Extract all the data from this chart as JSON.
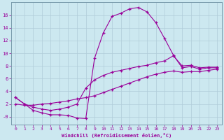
{
  "xlabel": "Windchill (Refroidissement éolien,°C)",
  "background_color": "#cce8f0",
  "line_color": "#990099",
  "xlim": [
    -0.5,
    23.5
  ],
  "ylim": [
    -1.2,
    18
  ],
  "yticks": [
    0,
    2,
    4,
    6,
    8,
    10,
    12,
    14,
    16
  ],
  "ytick_labels": [
    "-0",
    "2",
    "4",
    "6",
    "8",
    "10",
    "12",
    "14",
    "16"
  ],
  "xticks": [
    0,
    1,
    2,
    3,
    4,
    5,
    6,
    7,
    8,
    9,
    10,
    11,
    12,
    13,
    14,
    15,
    16,
    17,
    18,
    19,
    20,
    21,
    22,
    23
  ],
  "curve1_x": [
    0,
    1,
    2,
    3,
    4,
    5,
    6,
    7,
    8,
    9,
    10,
    11,
    12,
    13,
    14,
    15,
    16,
    17,
    18,
    19,
    20,
    21,
    22,
    23
  ],
  "curve1_y": [
    3.0,
    2.0,
    1.0,
    0.6,
    0.3,
    0.3,
    0.2,
    -0.2,
    -0.3,
    9.2,
    13.2,
    15.8,
    16.3,
    17.0,
    17.2,
    16.5,
    14.8,
    12.3,
    9.7,
    7.7,
    7.9,
    7.5,
    7.7,
    7.7
  ],
  "curve2_x": [
    0,
    1,
    2,
    3,
    4,
    5,
    6,
    7,
    8,
    9,
    10,
    11,
    12,
    13,
    14,
    15,
    16,
    17,
    18,
    19,
    20,
    21,
    22,
    23
  ],
  "curve2_y": [
    3.0,
    2.0,
    1.5,
    1.2,
    1.0,
    1.2,
    1.5,
    2.0,
    4.5,
    5.8,
    6.5,
    7.0,
    7.3,
    7.6,
    7.9,
    8.1,
    8.5,
    8.8,
    9.6,
    8.0,
    8.1,
    7.7,
    7.8,
    7.8
  ],
  "curve3_x": [
    0,
    1,
    2,
    3,
    4,
    5,
    6,
    7,
    8,
    9,
    10,
    11,
    12,
    13,
    14,
    15,
    16,
    17,
    18,
    19,
    20,
    21,
    22,
    23
  ],
  "curve3_y": [
    2.0,
    1.8,
    1.8,
    2.0,
    2.1,
    2.3,
    2.5,
    2.8,
    3.0,
    3.3,
    3.8,
    4.3,
    4.8,
    5.3,
    5.8,
    6.3,
    6.7,
    7.0,
    7.2,
    7.0,
    7.1,
    7.1,
    7.3,
    7.5
  ],
  "grid_color": "#b0ccd8",
  "marker": "+"
}
